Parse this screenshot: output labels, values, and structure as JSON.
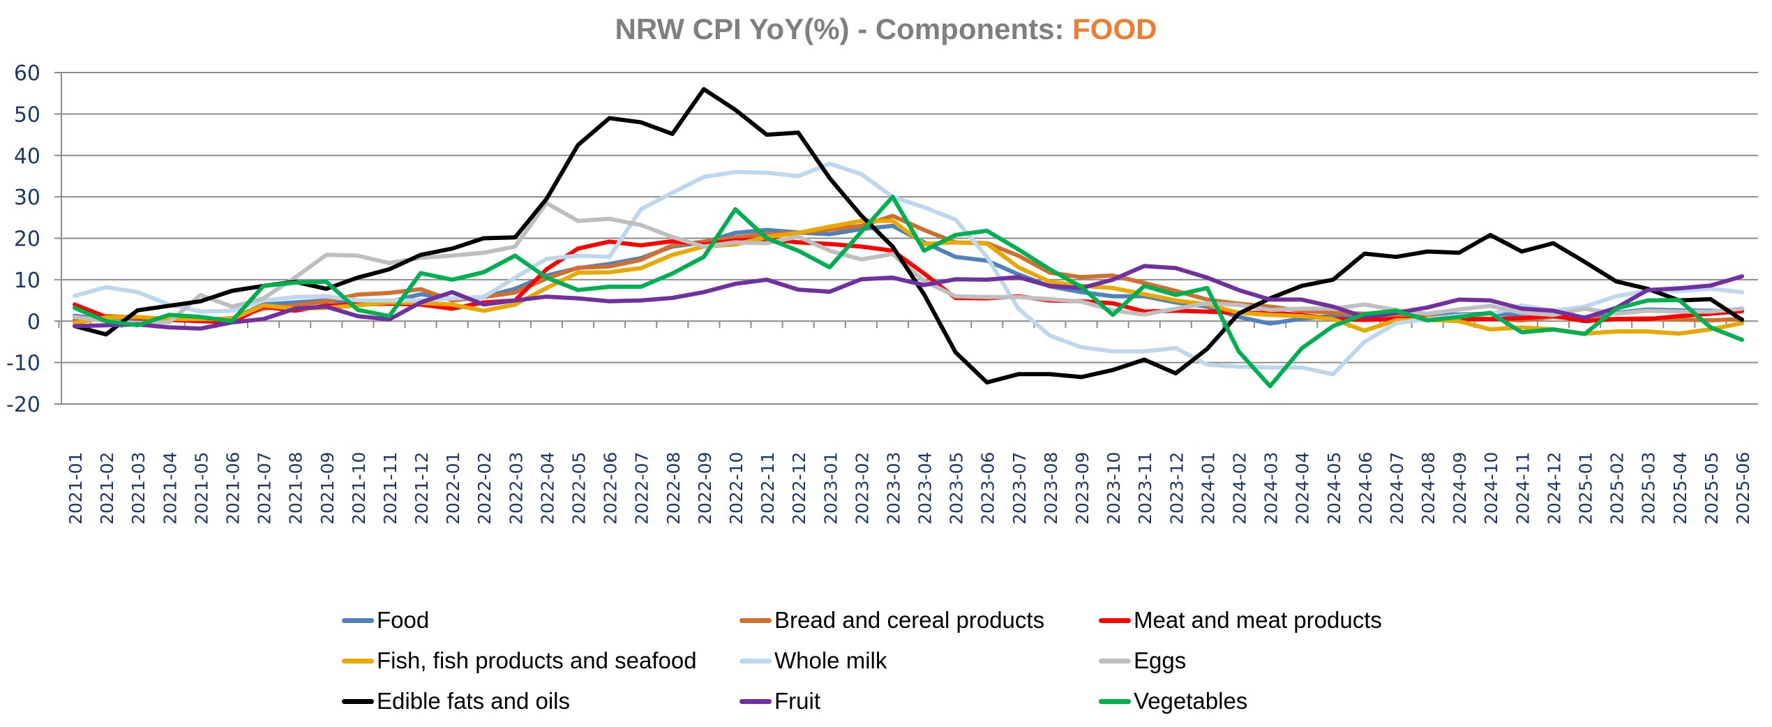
{
  "chart_data": {
    "type": "line",
    "title": "NRW CPI YoY(%) - Components: FOOD",
    "title_parts": {
      "main": "NRW CPI YoY(%) - Components: ",
      "accent": "FOOD"
    },
    "title_accent_color": "#ed7d31",
    "xlabel": "",
    "ylabel": "",
    "ylim": [
      -20,
      60
    ],
    "yticks": [
      -20,
      -10,
      0,
      10,
      20,
      30,
      40,
      50,
      60
    ],
    "grid": true,
    "legend_position": "bottom",
    "x": [
      "2021-01",
      "2021-02",
      "2021-03",
      "2021-04",
      "2021-05",
      "2021-06",
      "2021-07",
      "2021-08",
      "2021-09",
      "2021-10",
      "2021-11",
      "2021-12",
      "2022-01",
      "2022-02",
      "2022-03",
      "2022-04",
      "2022-05",
      "2022-06",
      "2022-07",
      "2022-08",
      "2022-09",
      "2022-10",
      "2022-11",
      "2022-12",
      "2023-01",
      "2023-02",
      "2023-03",
      "2023-04",
      "2023-05",
      "2023-06",
      "2023-07",
      "2023-08",
      "2023-09",
      "2023-10",
      "2023-11",
      "2023-12",
      "2024-01",
      "2024-02",
      "2024-03",
      "2024-04",
      "2024-05",
      "2024-06",
      "2024-07",
      "2024-08",
      "2024-09",
      "2024-10",
      "2024-11",
      "2024-12",
      "2025-01",
      "2025-02",
      "2025-03",
      "2025-04",
      "2025-05",
      "2025-06"
    ],
    "series": [
      {
        "name": "Food",
        "color": "#4f81bd",
        "values": [
          1.3,
          0.3,
          0.0,
          0.2,
          0.3,
          0.6,
          4.0,
          4.5,
          5.0,
          4.8,
          4.6,
          6.5,
          5.4,
          5.8,
          7.8,
          11.0,
          12.8,
          13.8,
          15.2,
          18.0,
          19.0,
          21.3,
          22.0,
          21.4,
          21.0,
          22.2,
          23.0,
          19.0,
          15.5,
          14.6,
          11.3,
          8.4,
          7.0,
          6.0,
          6.0,
          4.5,
          3.5,
          1.0,
          -0.6,
          0.6,
          1.2,
          0.8,
          1.2,
          1.6,
          1.6,
          1.8,
          1.5,
          1.2,
          0.9,
          2.0,
          2.8,
          2.6,
          2.5,
          2.4
        ]
      },
      {
        "name": "Bread and cereal products",
        "color": "#d07030",
        "values": [
          0.3,
          1.2,
          0.9,
          0.4,
          0.3,
          0.7,
          3.0,
          3.8,
          4.8,
          6.4,
          6.8,
          7.7,
          5.0,
          5.8,
          6.9,
          10.3,
          12.9,
          13.2,
          14.8,
          18.3,
          19.2,
          20.2,
          21.0,
          21.3,
          22.1,
          23.0,
          25.4,
          22.0,
          19.0,
          18.8,
          15.8,
          11.7,
          10.6,
          11.0,
          9.2,
          7.3,
          5.2,
          4.2,
          3.5,
          2.5,
          2.0,
          1.8,
          1.5,
          1.0,
          0.8,
          0.5,
          0.2,
          1.0,
          0.5,
          0.5,
          0.7,
          0.4,
          0.2,
          0.5
        ]
      },
      {
        "name": "Meat and meat products",
        "color": "#ff0000",
        "values": [
          4.0,
          1.0,
          0.8,
          0.3,
          0.0,
          -0.3,
          3.5,
          2.5,
          3.8,
          4.0,
          4.2,
          4.0,
          3.0,
          4.5,
          5.0,
          12.5,
          17.5,
          19.2,
          18.3,
          19.3,
          18.5,
          19.5,
          19.8,
          19.0,
          18.6,
          18.0,
          17.0,
          11.5,
          5.6,
          5.5,
          6.0,
          5.0,
          4.8,
          4.3,
          2.3,
          2.5,
          2.3,
          2.0,
          2.0,
          1.5,
          0.5,
          0.3,
          0.5,
          0.5,
          0.5,
          0.5,
          0.7,
          1.3,
          0.0,
          0.5,
          0.5,
          1.2,
          1.8,
          2.4
        ]
      },
      {
        "name": "Fish, fish products and seafood",
        "color": "#e8a800",
        "values": [
          -0.5,
          0.9,
          1.0,
          0.5,
          0.5,
          0.5,
          3.8,
          3.0,
          3.2,
          3.8,
          4.5,
          4.4,
          4.0,
          2.5,
          4.0,
          8.0,
          11.7,
          11.8,
          12.8,
          16.0,
          18.0,
          18.5,
          20.3,
          21.3,
          22.8,
          24.2,
          24.2,
          18.6,
          19.0,
          18.7,
          13.0,
          9.5,
          8.5,
          8.0,
          6.5,
          5.0,
          4.0,
          2.0,
          1.5,
          1.2,
          0.5,
          -2.3,
          0.2,
          0.3,
          0.0,
          -2.0,
          -1.5,
          -2.0,
          -3.0,
          -2.5,
          -2.5,
          -3.0,
          -2.0,
          -0.5
        ]
      },
      {
        "name": "Whole milk",
        "color": "#bdd7ee",
        "values": [
          6.1,
          8.2,
          7.0,
          4.0,
          2.3,
          2.5,
          5.0,
          5.8,
          6.0,
          5.0,
          5.0,
          5.0,
          5.5,
          5.8,
          10.5,
          15.0,
          15.8,
          15.5,
          27.0,
          31.0,
          34.8,
          36.0,
          35.8,
          35.0,
          38.0,
          35.5,
          30.0,
          27.5,
          24.5,
          15.5,
          3.0,
          -3.5,
          -6.3,
          -7.3,
          -7.3,
          -6.5,
          -10.5,
          -11.0,
          -11.2,
          -11.2,
          -12.8,
          -5.0,
          -0.5,
          0.5,
          1.3,
          1.7,
          3.8,
          2.5,
          3.5,
          6.0,
          7.3,
          7.3,
          7.8,
          7.0
        ]
      },
      {
        "name": "Eggs",
        "color": "#bfbfbf",
        "values": [
          1.0,
          0.0,
          -0.5,
          -0.3,
          6.3,
          3.5,
          5.5,
          10.5,
          16.0,
          15.8,
          14.0,
          15.3,
          15.8,
          16.5,
          18.0,
          28.5,
          24.2,
          24.7,
          23.2,
          20.3,
          18.0,
          19.0,
          18.8,
          20.4,
          17.0,
          14.9,
          16.2,
          9.7,
          6.0,
          5.8,
          5.8,
          5.3,
          4.7,
          2.6,
          1.6,
          3.0,
          4.3,
          3.9,
          2.7,
          3.0,
          3.0,
          4.0,
          2.7,
          1.8,
          2.8,
          3.7,
          2.0,
          1.5,
          3.0,
          1.8,
          2.5,
          2.3,
          2.3,
          3.0
        ]
      },
      {
        "name": "Edible fats and oils",
        "color": "#000000",
        "values": [
          -1.2,
          -3.2,
          2.6,
          3.7,
          4.8,
          7.3,
          8.5,
          9.5,
          7.8,
          10.5,
          12.5,
          16.0,
          17.5,
          20.0,
          20.2,
          29.5,
          42.5,
          49.0,
          48.0,
          45.2,
          56.0,
          51.0,
          45.0,
          45.5,
          34.5,
          25.5,
          18.0,
          6.5,
          -7.5,
          -14.8,
          -12.8,
          -12.8,
          -13.5,
          -11.8,
          -9.3,
          -12.6,
          -6.7,
          1.8,
          5.5,
          8.5,
          10.0,
          16.3,
          15.5,
          16.8,
          16.5,
          20.8,
          16.8,
          18.8,
          14.3,
          9.6,
          7.8,
          5.0,
          5.3,
          0.3
        ]
      },
      {
        "name": "Fruit",
        "color": "#7030a0",
        "values": [
          -1.2,
          -1.0,
          -0.8,
          -1.5,
          -1.8,
          -0.3,
          0.5,
          3.0,
          3.5,
          1.2,
          0.4,
          4.5,
          7.0,
          4.0,
          5.0,
          5.9,
          5.5,
          4.8,
          5.0,
          5.6,
          7.0,
          9.0,
          10.0,
          7.6,
          7.1,
          10.1,
          10.5,
          8.7,
          10.1,
          10.0,
          10.6,
          8.5,
          8.0,
          10.0,
          13.3,
          12.8,
          10.5,
          7.5,
          5.2,
          5.2,
          3.5,
          1.0,
          2.0,
          3.3,
          5.2,
          5.0,
          3.0,
          2.5,
          0.8,
          3.2,
          7.5,
          7.9,
          8.6,
          10.8
        ]
      },
      {
        "name": "Vegetables",
        "color": "#00b050",
        "values": [
          3.2,
          0.0,
          -1.0,
          1.5,
          1.0,
          0.0,
          8.5,
          9.3,
          9.5,
          2.7,
          1.2,
          11.6,
          10.0,
          11.8,
          15.8,
          10.5,
          7.5,
          8.3,
          8.3,
          11.5,
          15.5,
          27.0,
          20.0,
          17.0,
          13.0,
          21.5,
          30.0,
          17.0,
          20.8,
          21.8,
          17.3,
          12.5,
          8.3,
          1.5,
          8.5,
          6.3,
          8.0,
          -7.3,
          -15.7,
          -6.6,
          -1.2,
          1.7,
          2.5,
          0.2,
          1.0,
          2.0,
          -2.7,
          -2.0,
          -3.1,
          3.0,
          5.0,
          5.1,
          -1.5,
          -4.5
        ]
      }
    ]
  }
}
